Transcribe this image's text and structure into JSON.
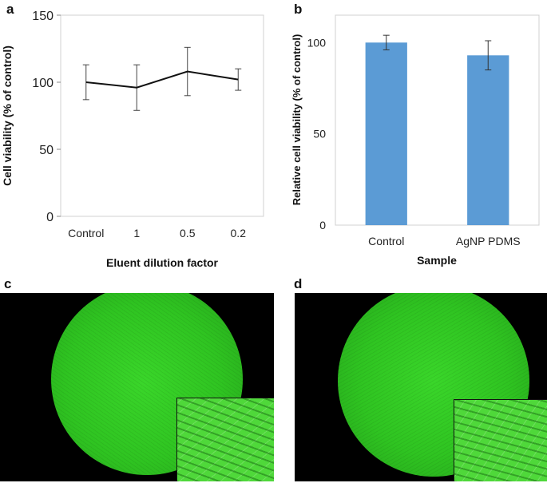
{
  "panels": {
    "a": "a",
    "b": "b",
    "c": "c",
    "d": "d"
  },
  "chart_data": [
    {
      "type": "line",
      "categories": [
        "Control",
        "1",
        "0.5",
        "0.2"
      ],
      "values": [
        100,
        96,
        108,
        102
      ],
      "errors": [
        13,
        17,
        18,
        8
      ],
      "xlabel": "Eluent dilution factor",
      "ylabel": "Cell viability (% of control)",
      "ylim": [
        0,
        150
      ],
      "yticks": [
        "0",
        "50",
        "100",
        "150"
      ],
      "grid": false,
      "line_color": "#111111"
    },
    {
      "type": "bar",
      "categories": [
        "Control",
        "AgNP PDMS"
      ],
      "values": [
        100,
        93
      ],
      "errors": [
        4,
        8
      ],
      "xlabel": "Sample",
      "ylabel": "Relative cell viability (% of control)",
      "ylim": [
        0,
        115
      ],
      "yticks": [
        "0",
        "50",
        "100"
      ],
      "grid": false,
      "bar_color": "#5b9bd5"
    }
  ],
  "micrographs": {
    "background": "#000000",
    "cell_color": "#3fcf2e",
    "inset_color": "#4fd83a"
  }
}
